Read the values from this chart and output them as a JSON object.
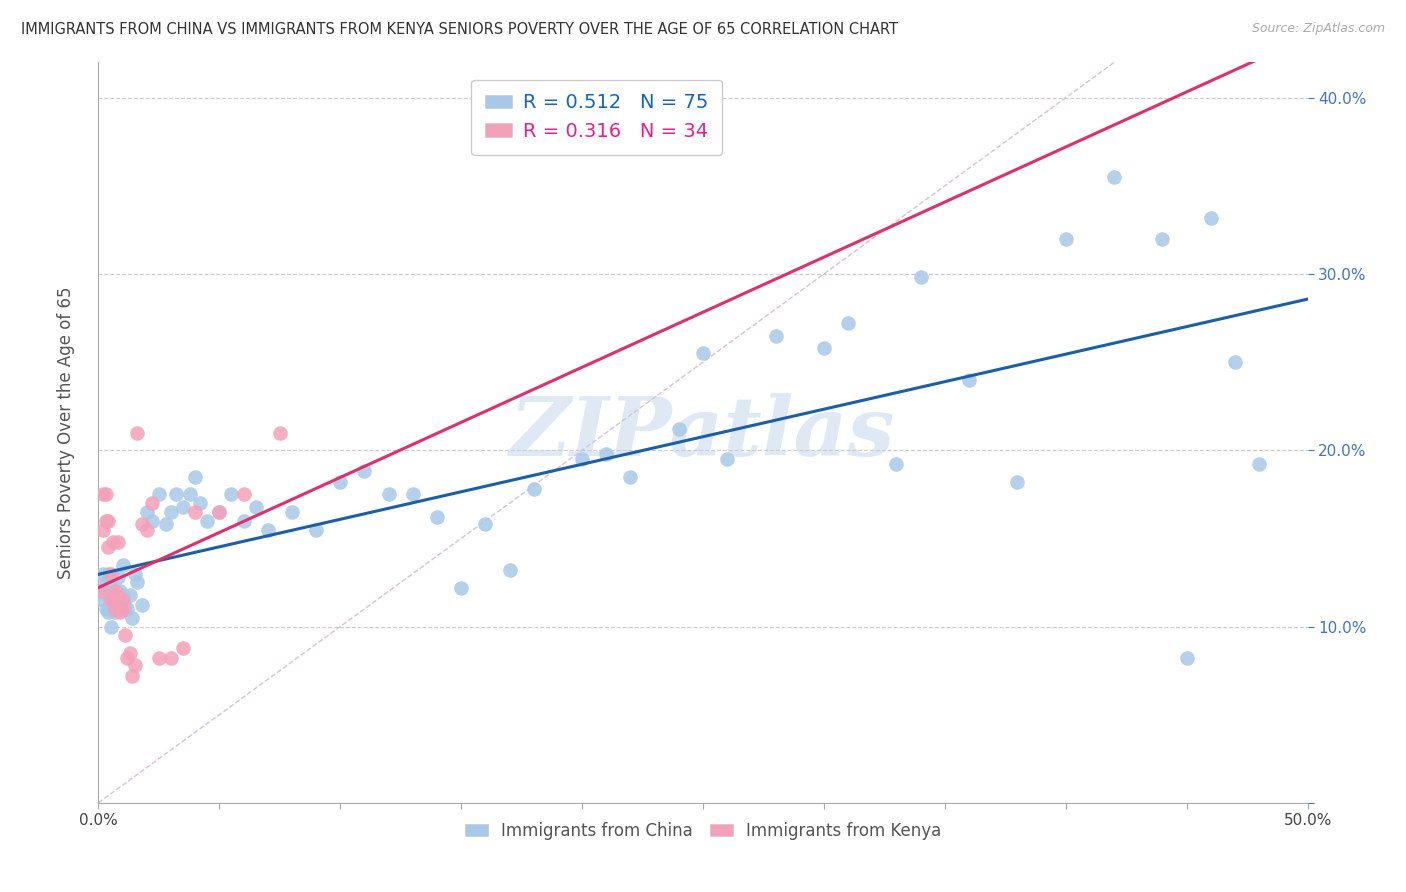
{
  "title": "IMMIGRANTS FROM CHINA VS IMMIGRANTS FROM KENYA SENIORS POVERTY OVER THE AGE OF 65 CORRELATION CHART",
  "source": "Source: ZipAtlas.com",
  "ylabel": "Seniors Poverty Over the Age of 65",
  "china_color": "#a8c8e8",
  "kenya_color": "#f4a0b8",
  "china_line_color": "#1a5fa8",
  "kenya_line_color": "#e0306a",
  "diagonal_color": "#d0b0d0",
  "watermark": "ZIPatlas",
  "R_china": 0.512,
  "N_china": 75,
  "R_kenya": 0.316,
  "N_kenya": 34,
  "legend_label_china": "Immigrants from China",
  "legend_label_kenya": "Immigrants from Kenya",
  "xlim": [
    0.0,
    0.5
  ],
  "ylim": [
    0.0,
    0.42
  ],
  "china_x": [
    0.001,
    0.002,
    0.002,
    0.003,
    0.003,
    0.004,
    0.004,
    0.004,
    0.005,
    0.005,
    0.005,
    0.006,
    0.006,
    0.007,
    0.007,
    0.008,
    0.008,
    0.009,
    0.009,
    0.01,
    0.01,
    0.011,
    0.012,
    0.013,
    0.014,
    0.015,
    0.016,
    0.018,
    0.02,
    0.022,
    0.025,
    0.028,
    0.03,
    0.032,
    0.035,
    0.038,
    0.04,
    0.042,
    0.045,
    0.05,
    0.055,
    0.06,
    0.065,
    0.07,
    0.08,
    0.09,
    0.1,
    0.11,
    0.12,
    0.13,
    0.14,
    0.15,
    0.16,
    0.17,
    0.18,
    0.2,
    0.21,
    0.22,
    0.24,
    0.25,
    0.26,
    0.28,
    0.3,
    0.31,
    0.33,
    0.34,
    0.36,
    0.38,
    0.4,
    0.42,
    0.44,
    0.45,
    0.46,
    0.47,
    0.48
  ],
  "china_y": [
    0.12,
    0.115,
    0.13,
    0.11,
    0.125,
    0.108,
    0.118,
    0.13,
    0.1,
    0.115,
    0.125,
    0.112,
    0.12,
    0.118,
    0.108,
    0.115,
    0.128,
    0.112,
    0.12,
    0.118,
    0.135,
    0.112,
    0.11,
    0.118,
    0.105,
    0.13,
    0.125,
    0.112,
    0.165,
    0.16,
    0.175,
    0.158,
    0.165,
    0.175,
    0.168,
    0.175,
    0.185,
    0.17,
    0.16,
    0.165,
    0.175,
    0.16,
    0.168,
    0.155,
    0.165,
    0.155,
    0.182,
    0.188,
    0.175,
    0.175,
    0.162,
    0.122,
    0.158,
    0.132,
    0.178,
    0.195,
    0.198,
    0.185,
    0.212,
    0.255,
    0.195,
    0.265,
    0.258,
    0.272,
    0.192,
    0.298,
    0.24,
    0.182,
    0.32,
    0.355,
    0.32,
    0.082,
    0.332,
    0.25,
    0.192
  ],
  "kenya_x": [
    0.001,
    0.002,
    0.002,
    0.003,
    0.003,
    0.004,
    0.004,
    0.005,
    0.005,
    0.006,
    0.006,
    0.007,
    0.007,
    0.008,
    0.008,
    0.009,
    0.01,
    0.01,
    0.011,
    0.012,
    0.013,
    0.014,
    0.015,
    0.016,
    0.018,
    0.02,
    0.022,
    0.025,
    0.03,
    0.035,
    0.04,
    0.05,
    0.06,
    0.075
  ],
  "kenya_y": [
    0.12,
    0.175,
    0.155,
    0.16,
    0.175,
    0.145,
    0.16,
    0.115,
    0.13,
    0.148,
    0.115,
    0.11,
    0.12,
    0.118,
    0.148,
    0.108,
    0.11,
    0.115,
    0.095,
    0.082,
    0.085,
    0.072,
    0.078,
    0.21,
    0.158,
    0.155,
    0.17,
    0.082,
    0.082,
    0.088,
    0.165,
    0.165,
    0.175,
    0.21
  ]
}
